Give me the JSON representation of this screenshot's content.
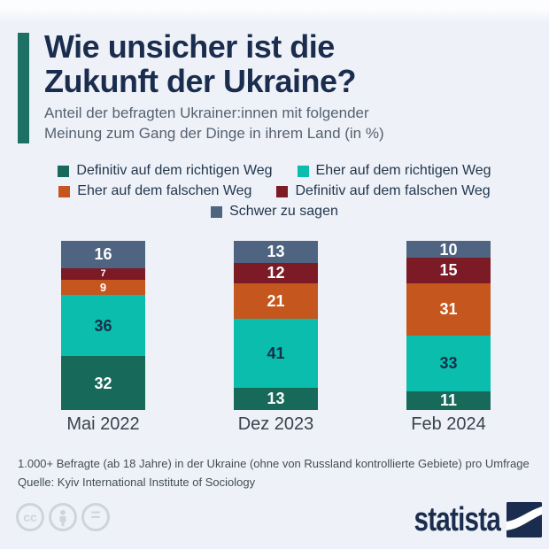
{
  "header": {
    "title_line1": "Wie unsicher ist die",
    "title_line2": "Zukunft der Ukraine?",
    "subtitle_line1": "Anteil der befragten Ukrainer:innen mit folgender",
    "subtitle_line2": "Meinung zum Gang der Dinge in ihrem Land (in %)"
  },
  "chart_data": {
    "type": "bar",
    "stacked": true,
    "title": "Wie unsicher ist die Zukunft der Ukraine?",
    "subtitle": "Anteil der befragten Ukrainer:innen mit folgender Meinung zum Gang der Dinge in ihrem Land (in %)",
    "categories": [
      "Mai 2022",
      "Dez 2023",
      "Feb 2024"
    ],
    "series": [
      {
        "name": "Definitiv auf dem richtigen Weg",
        "color": "#17695a",
        "label_color": "#ffffff",
        "values": [
          32,
          13,
          11
        ]
      },
      {
        "name": "Eher auf dem richtigen Weg",
        "color": "#0abdad",
        "label_color": "#16304a",
        "values": [
          36,
          41,
          33
        ]
      },
      {
        "name": "Eher auf dem falschen Weg",
        "color": "#c4561e",
        "label_color": "#ffffff",
        "values": [
          9,
          21,
          31
        ]
      },
      {
        "name": "Definitiv auf dem falschen Weg",
        "color": "#7c1a26",
        "label_color": "#ffffff",
        "values": [
          7,
          12,
          15
        ]
      },
      {
        "name": "Schwer zu sagen",
        "color": "#4e6480",
        "label_color": "#ffffff",
        "values": [
          16,
          13,
          10
        ]
      }
    ],
    "stack_order_top_to_bottom": [
      "Schwer zu sagen",
      "Definitiv auf dem falschen Weg",
      "Eher auf dem falschen Weg",
      "Eher auf dem richtigen Weg",
      "Definitiv auf dem richtigen Weg"
    ],
    "legend_rows": [
      [
        0,
        1
      ],
      [
        2,
        3
      ],
      [
        4
      ]
    ],
    "legend_position": "top",
    "ylim": [
      0,
      100
    ],
    "grid": false,
    "data_labels": true
  },
  "footer": {
    "note": "1.000+ Befragte (ab 18 Jahre) in der Ukraine (ohne von Russland kontrollierte Gebiete) pro Umfrage",
    "source": "Quelle: Kyiv International Institute of Sociology"
  },
  "branding": {
    "logo_text": "statista",
    "license_icons": [
      "cc-icon",
      "attribution-icon",
      "no-derivatives-icon"
    ]
  },
  "colors": {
    "background": "#eef2f8",
    "accent_bar": "#1d7164",
    "title": "#1b2d4e",
    "subtitle": "#566170",
    "legend_text": "#24364e",
    "category_label": "#39424e",
    "footer_text": "#454c55",
    "license_icon": "#cdd4dd",
    "logo": "#1b2d4e"
  }
}
